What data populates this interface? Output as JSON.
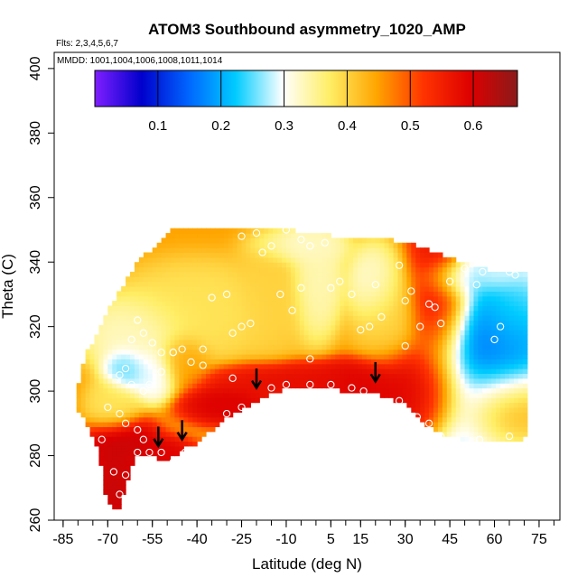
{
  "chart_data": {
    "type": "heatmap",
    "title": "ATOM3 Southbound asymmetry_1020_AMP",
    "flights_note": "Flts: 2,3,4,5,6,7",
    "mmdd_note": "MMDD: 1001,1004,1006,1008,1011,1014",
    "xlabel": "Latitude (deg N)",
    "ylabel": "Theta (C)",
    "xlim": [
      -88,
      82
    ],
    "ylim": [
      260,
      405
    ],
    "x_ticks": [
      -85,
      -70,
      -55,
      -40,
      -25,
      -10,
      5,
      15,
      30,
      45,
      60,
      75
    ],
    "x_tick_labels": [
      "-85",
      "-70",
      "-55",
      "-40",
      "-25",
      "-10",
      "5",
      "15",
      "30",
      "45",
      "60",
      "75"
    ],
    "y_ticks": [
      260,
      280,
      300,
      320,
      340,
      360,
      380,
      400
    ],
    "y_tick_labels": [
      "260",
      "280",
      "300",
      "320",
      "340",
      "360",
      "380",
      "400"
    ],
    "colorbar": {
      "range": [
        0.0,
        0.67
      ],
      "ticks": [
        0.1,
        0.2,
        0.3,
        0.4,
        0.5,
        0.6
      ],
      "tick_labels": [
        "0.1",
        "0.2",
        "0.3",
        "0.4",
        "0.5",
        "0.6"
      ],
      "colors": [
        "#7f1fff",
        "#0000cc",
        "#0066ff",
        "#00ccff",
        "#ffffff",
        "#ffee66",
        "#ffa500",
        "#ff3300",
        "#dd0000",
        "#8b1a1a"
      ]
    },
    "field": {
      "bottom_boundary": [
        [
          -73,
          282
        ],
        [
          -71,
          268
        ],
        [
          -69,
          264
        ],
        [
          -66,
          264
        ],
        [
          -63,
          274
        ],
        [
          -60,
          280
        ],
        [
          -55,
          280
        ],
        [
          -50,
          278
        ],
        [
          -45,
          282
        ],
        [
          -40,
          284
        ],
        [
          -30,
          292
        ],
        [
          -20,
          297
        ],
        [
          -10,
          301
        ],
        [
          0,
          301
        ],
        [
          10,
          300
        ],
        [
          20,
          299
        ],
        [
          30,
          296
        ],
        [
          35,
          291
        ],
        [
          42,
          287
        ],
        [
          50,
          285
        ],
        [
          60,
          285
        ],
        [
          70,
          285
        ],
        [
          71,
          286
        ]
      ],
      "top_boundary": [
        [
          71,
          286
        ],
        [
          71,
          337
        ],
        [
          60,
          337
        ],
        [
          50,
          340
        ],
        [
          35,
          345
        ],
        [
          25,
          347
        ],
        [
          15,
          347
        ],
        [
          0,
          349
        ],
        [
          -10,
          350
        ],
        [
          -30,
          350
        ],
        [
          -48,
          350
        ],
        [
          -60,
          340
        ],
        [
          -70,
          325
        ],
        [
          -78,
          310
        ],
        [
          -81,
          296
        ],
        [
          -75,
          286
        ],
        [
          -73,
          282
        ]
      ],
      "background_value": 0.45,
      "blobs": [
        {
          "lat": 60,
          "theta": 312,
          "value": 0.06,
          "radius": 10,
          "ry": 16
        },
        {
          "lat": 56,
          "theta": 305,
          "value": 0.22,
          "radius": 14,
          "ry": 24
        },
        {
          "lat": 63,
          "theta": 322,
          "value": 0.28,
          "radius": 8,
          "ry": 14
        },
        {
          "lat": 50,
          "theta": 335,
          "value": 0.22,
          "radius": 9,
          "ry": 5
        },
        {
          "lat": 58,
          "theta": 336,
          "value": 0.32,
          "radius": 8,
          "ry": 4
        },
        {
          "lat": 42,
          "theta": 330,
          "value": 0.58,
          "radius": 8,
          "ry": 18
        },
        {
          "lat": 35,
          "theta": 300,
          "value": 0.6,
          "radius": 12,
          "ry": 10
        },
        {
          "lat": 62,
          "theta": 296,
          "value": 0.58,
          "radius": 10,
          "ry": 10
        },
        {
          "lat": 20,
          "theta": 333,
          "value": 0.3,
          "radius": 6,
          "ry": 8
        },
        {
          "lat": 24,
          "theta": 325,
          "value": 0.4,
          "radius": 8,
          "ry": 12
        },
        {
          "lat": 0,
          "theta": 335,
          "value": 0.33,
          "radius": 6,
          "ry": 12
        },
        {
          "lat": -5,
          "theta": 345,
          "value": 0.32,
          "radius": 10,
          "ry": 4
        },
        {
          "lat": -15,
          "theta": 330,
          "value": 0.4,
          "radius": 8,
          "ry": 12
        },
        {
          "lat": -40,
          "theta": 325,
          "value": 0.38,
          "radius": 18,
          "ry": 10
        },
        {
          "lat": -60,
          "theta": 318,
          "value": 0.32,
          "radius": 12,
          "ry": 8
        },
        {
          "lat": -64,
          "theta": 307,
          "value": 0.24,
          "radius": 5,
          "ry": 5
        },
        {
          "lat": -55,
          "theta": 306,
          "value": 0.28,
          "radius": 6,
          "ry": 6
        },
        {
          "lat": -45,
          "theta": 310,
          "value": 0.45,
          "radius": 6,
          "ry": 6
        },
        {
          "lat": -68,
          "theta": 296,
          "value": 0.38,
          "radius": 6,
          "ry": 6
        },
        {
          "lat": -65,
          "theta": 283,
          "value": 0.62,
          "radius": 8,
          "ry": 6
        },
        {
          "lat": -55,
          "theta": 280,
          "value": 0.6,
          "radius": 10,
          "ry": 4
        },
        {
          "lat": -68,
          "theta": 270,
          "value": 0.62,
          "radius": 5,
          "ry": 8
        },
        {
          "lat": -30,
          "theta": 296,
          "value": 0.6,
          "radius": 10,
          "ry": 4
        },
        {
          "lat": -5,
          "theta": 303,
          "value": 0.58,
          "radius": 22,
          "ry": 4
        },
        {
          "lat": 15,
          "theta": 302,
          "value": 0.6,
          "radius": 10,
          "ry": 5
        }
      ]
    },
    "observations": [
      [
        60,
        316
      ],
      [
        62,
        320
      ],
      [
        54,
        333
      ],
      [
        50,
        338
      ],
      [
        56,
        337
      ],
      [
        65,
        337
      ],
      [
        67,
        336
      ],
      [
        45,
        334
      ],
      [
        42,
        321
      ],
      [
        40,
        326
      ],
      [
        35,
        320
      ],
      [
        32,
        331
      ],
      [
        30,
        314
      ],
      [
        30,
        328
      ],
      [
        38,
        327
      ],
      [
        28,
        339
      ],
      [
        20,
        333
      ],
      [
        22,
        323
      ],
      [
        18,
        320
      ],
      [
        15,
        319
      ],
      [
        12,
        330
      ],
      [
        8,
        334
      ],
      [
        5,
        332
      ],
      [
        3,
        346
      ],
      [
        -2,
        345
      ],
      [
        -5,
        347
      ],
      [
        -10,
        350
      ],
      [
        -15,
        345
      ],
      [
        -18,
        343
      ],
      [
        -20,
        349
      ],
      [
        -25,
        348
      ],
      [
        -12,
        330
      ],
      [
        -8,
        325
      ],
      [
        -5,
        332
      ],
      [
        -22,
        321
      ],
      [
        -25,
        320
      ],
      [
        -28,
        318
      ],
      [
        -30,
        330
      ],
      [
        -35,
        329
      ],
      [
        -38,
        313
      ],
      [
        -42,
        309
      ],
      [
        -45,
        313
      ],
      [
        -48,
        312
      ],
      [
        -52,
        312
      ],
      [
        -55,
        315
      ],
      [
        -58,
        318
      ],
      [
        -60,
        322
      ],
      [
        -62,
        316
      ],
      [
        -64,
        307
      ],
      [
        -66,
        305
      ],
      [
        -62,
        302
      ],
      [
        -58,
        300
      ],
      [
        -56,
        302
      ],
      [
        -52,
        306
      ],
      [
        -48,
        312
      ],
      [
        -70,
        295
      ],
      [
        -66,
        293
      ],
      [
        -64,
        290
      ],
      [
        -60,
        288
      ],
      [
        -58,
        285
      ],
      [
        -56,
        281
      ],
      [
        -52,
        281
      ],
      [
        -48,
        278
      ],
      [
        -44,
        281
      ],
      [
        -72,
        285
      ],
      [
        -68,
        275
      ],
      [
        -66,
        268
      ],
      [
        -64,
        274
      ],
      [
        -60,
        281
      ],
      [
        -30,
        293
      ],
      [
        -25,
        295
      ],
      [
        -15,
        301
      ],
      [
        -10,
        302
      ],
      [
        -2,
        302
      ],
      [
        5,
        302
      ],
      [
        12,
        301
      ],
      [
        16,
        300
      ],
      [
        28,
        297
      ],
      [
        34,
        292
      ],
      [
        38,
        290
      ],
      [
        42,
        286
      ],
      [
        48,
        283
      ],
      [
        55,
        285
      ],
      [
        65,
        286
      ],
      [
        -28,
        304
      ],
      [
        -38,
        308
      ],
      [
        -2,
        310
      ]
    ],
    "arrows": [
      [
        -53,
        283
      ],
      [
        -45,
        285
      ],
      [
        -20,
        301
      ],
      [
        20,
        303
      ]
    ]
  }
}
